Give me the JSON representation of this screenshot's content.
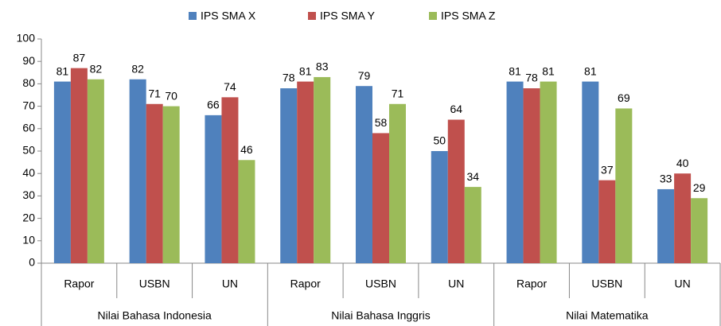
{
  "chart_data": {
    "type": "bar",
    "categories": [
      "Rapor",
      "USBN",
      "UN",
      "Rapor",
      "USBN",
      "UN",
      "Rapor",
      "USBN",
      "UN"
    ],
    "category_groups": [
      "Nilai Bahasa Indonesia",
      "Nilai Bahasa Inggris",
      "Nilai Matematika"
    ],
    "series": [
      {
        "name": "IPS SMA X",
        "color": "#4f81bd",
        "values": [
          81,
          82,
          66,
          78,
          79,
          50,
          81,
          81,
          33
        ]
      },
      {
        "name": "IPS SMA Y",
        "color": "#c0504d",
        "values": [
          87,
          71,
          74,
          81,
          58,
          64,
          78,
          37,
          40
        ]
      },
      {
        "name": "IPS SMA Z",
        "color": "#9bbb59",
        "values": [
          82,
          70,
          46,
          83,
          71,
          34,
          81,
          69,
          29
        ]
      }
    ],
    "ylim": [
      0,
      100
    ],
    "yticks": [
      0,
      10,
      20,
      30,
      40,
      50,
      60,
      70,
      80,
      90,
      100
    ],
    "grid": false,
    "legend": "top"
  }
}
